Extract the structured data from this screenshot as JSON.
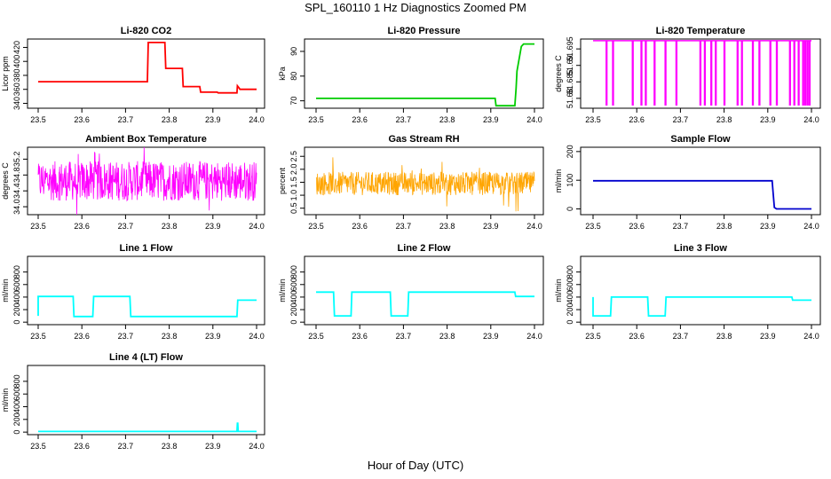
{
  "figure": {
    "title": "SPL_160110  1 Hz Diagnostics Zoomed PM",
    "xlabel": "Hour of Day (UTC)"
  },
  "chart_data": [
    {
      "type": "line",
      "title": "Li-820 CO2",
      "ylabel": "Licor ppm",
      "color": "#ff0000",
      "xlim": [
        23.5,
        24.0
      ],
      "ylim": [
        333,
        432
      ],
      "xticks": [
        "23.5",
        "23.6",
        "23.7",
        "23.8",
        "23.9",
        "24.0"
      ],
      "yticks": [
        340,
        360,
        380,
        400,
        420
      ],
      "series": [
        {
          "x": [
            23.5,
            23.75,
            23.752,
            23.79,
            23.792,
            23.83,
            23.832,
            23.87,
            23.872,
            23.91,
            23.912,
            23.955,
            23.956,
            23.96,
            23.962,
            24.0
          ],
          "y": [
            371,
            371,
            427,
            427,
            390,
            390,
            364,
            364,
            356,
            356,
            355,
            355,
            365,
            362,
            360,
            360
          ]
        }
      ]
    },
    {
      "type": "line",
      "title": "Li-820 Pressure",
      "ylabel": "kPa",
      "color": "#00cc00",
      "xlim": [
        23.5,
        24.0
      ],
      "ylim": [
        67,
        95
      ],
      "xticks": [
        "23.5",
        "23.6",
        "23.7",
        "23.8",
        "23.9",
        "24.0"
      ],
      "yticks": [
        70,
        80,
        90
      ],
      "series": [
        {
          "x": [
            23.5,
            23.91,
            23.912,
            23.955,
            23.958,
            23.96,
            23.97,
            23.975,
            24.0
          ],
          "y": [
            71,
            71,
            68,
            68,
            75,
            82,
            92,
            93,
            93
          ]
        }
      ]
    },
    {
      "type": "line",
      "title": "Li-820 Temperature",
      "ylabel": "degrees C",
      "color": "#ff00ff",
      "xlim": [
        23.5,
        24.0
      ],
      "ylim": [
        51.677,
        51.698
      ],
      "xticks": [
        "23.5",
        "23.6",
        "23.7",
        "23.8",
        "23.9",
        "24.0"
      ],
      "yticks": [
        51.68,
        51.685,
        51.69,
        51.695
      ],
      "baseline": 51.6975,
      "low": 51.678,
      "drop_x": [
        23.53,
        23.545,
        23.59,
        23.61,
        23.62,
        23.64,
        23.665,
        23.69,
        23.745,
        23.755,
        23.77,
        23.78,
        23.8,
        23.83,
        23.84,
        23.865,
        23.88,
        23.905,
        23.92,
        23.95,
        23.96,
        23.97,
        23.98,
        23.985,
        23.99,
        23.995
      ]
    },
    {
      "type": "line",
      "title": "Ambient Box Temperature",
      "ylabel": "degrees C",
      "color": "#ff00ff",
      "xlim": [
        23.5,
        24.0
      ],
      "ylim": [
        33.8,
        35.5
      ],
      "xticks": [
        "23.5",
        "23.6",
        "23.7",
        "23.8",
        "23.9",
        "24.0"
      ],
      "yticks": [
        34.0,
        34.4,
        34.8,
        35.2
      ],
      "noise": {
        "center": 34.65,
        "amp": 0.5
      }
    },
    {
      "type": "line",
      "title": "Gas Stream RH",
      "ylabel": "percent",
      "color": "#ffa500",
      "xlim": [
        23.5,
        24.0
      ],
      "ylim": [
        0.25,
        2.85
      ],
      "xticks": [
        "23.5",
        "23.6",
        "23.7",
        "23.8",
        "23.9",
        "24.0"
      ],
      "yticks": [
        0.5,
        1.0,
        1.5,
        2.0,
        2.5
      ],
      "noise": {
        "center": 1.45,
        "amp": 0.45
      }
    },
    {
      "type": "line",
      "title": "Sample Flow",
      "ylabel": "ml/min",
      "color": "#0000cd",
      "xlim": [
        23.5,
        24.0
      ],
      "ylim": [
        -20,
        215
      ],
      "xticks": [
        "23.5",
        "23.6",
        "23.7",
        "23.8",
        "23.9",
        "24.0"
      ],
      "yticks": [
        0,
        100,
        200
      ],
      "series": [
        {
          "x": [
            23.5,
            23.91,
            23.912,
            23.915,
            23.92,
            24.0
          ],
          "y": [
            98,
            98,
            60,
            5,
            0,
            0
          ]
        }
      ]
    },
    {
      "type": "line",
      "title": "Line 1 Flow",
      "ylabel": "ml/min",
      "color": "#00ffff",
      "xlim": [
        23.5,
        24.0
      ],
      "ylim": [
        -40,
        1050
      ],
      "xticks": [
        "23.5",
        "23.6",
        "23.7",
        "23.8",
        "23.9",
        "24.0"
      ],
      "yticks": [
        0,
        200,
        400,
        600,
        800
      ],
      "series": [
        {
          "x": [
            23.5,
            23.5,
            23.58,
            23.582,
            23.625,
            23.627,
            23.71,
            23.712,
            23.955,
            23.957,
            24.0
          ],
          "y": [
            100,
            410,
            410,
            90,
            90,
            410,
            410,
            90,
            90,
            350,
            350
          ]
        }
      ]
    },
    {
      "type": "line",
      "title": "Line 2 Flow",
      "ylabel": "ml/min",
      "color": "#00ffff",
      "xlim": [
        23.5,
        24.0
      ],
      "ylim": [
        -40,
        1050
      ],
      "xticks": [
        "23.5",
        "23.6",
        "23.7",
        "23.8",
        "23.9",
        "24.0"
      ],
      "yticks": [
        0,
        200,
        400,
        600,
        800
      ],
      "series": [
        {
          "x": [
            23.5,
            23.54,
            23.542,
            23.58,
            23.582,
            23.67,
            23.672,
            23.71,
            23.712,
            23.955,
            23.957,
            24.0
          ],
          "y": [
            480,
            480,
            100,
            100,
            480,
            480,
            100,
            100,
            480,
            480,
            410,
            410
          ]
        }
      ]
    },
    {
      "type": "line",
      "title": "Line 3 Flow",
      "ylabel": "ml/min",
      "color": "#00ffff",
      "xlim": [
        23.5,
        24.0
      ],
      "ylim": [
        -40,
        1050
      ],
      "xticks": [
        "23.5",
        "23.6",
        "23.7",
        "23.8",
        "23.9",
        "24.0"
      ],
      "yticks": [
        0,
        200,
        400,
        600,
        800
      ],
      "series": [
        {
          "x": [
            23.5,
            23.5,
            23.502,
            23.54,
            23.542,
            23.625,
            23.627,
            23.665,
            23.667,
            23.955,
            23.957,
            24.0
          ],
          "y": [
            400,
            100,
            100,
            100,
            400,
            400,
            100,
            100,
            400,
            400,
            350,
            350
          ]
        }
      ]
    },
    {
      "type": "line",
      "title": "Line 4 (LT) Flow",
      "ylabel": "ml/min",
      "color": "#00ffff",
      "xlim": [
        23.5,
        24.0
      ],
      "ylim": [
        -40,
        1050
      ],
      "xticks": [
        "23.5",
        "23.6",
        "23.7",
        "23.8",
        "23.9",
        "24.0"
      ],
      "yticks": [
        0,
        200,
        400,
        600,
        800
      ],
      "series": [
        {
          "x": [
            23.5,
            23.955,
            23.956,
            23.957,
            23.958,
            24.0
          ],
          "y": [
            10,
            10,
            140,
            140,
            10,
            10
          ]
        }
      ]
    }
  ]
}
